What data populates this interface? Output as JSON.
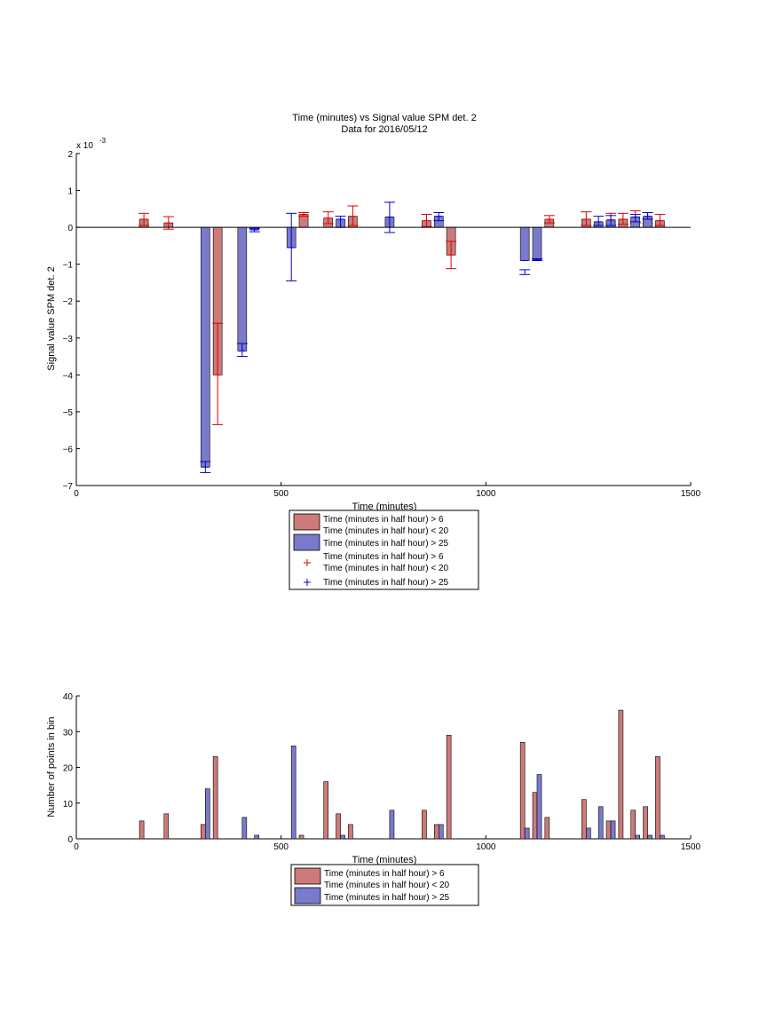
{
  "colors": {
    "bar_red_fill": "#cc7a7a",
    "bar_blue_fill": "#7a7acc",
    "err_red": "#dd0000",
    "err_blue": "#0000cc",
    "axis": "#000000"
  },
  "chart_data": [
    {
      "type": "bar",
      "title": "Time (minutes) vs Signal value SPM det. 2",
      "subtitle": "Data for 2016/05/12",
      "xlabel": "Time (minutes)",
      "ylabel": "Signal value SPM det. 2",
      "scale_label": "x 10",
      "scale_exponent": "-3",
      "xlim": [
        0,
        1500
      ],
      "ylim": [
        -7,
        2
      ],
      "xticks": [
        0,
        500,
        1000,
        1500
      ],
      "yticks": [
        2,
        1,
        0,
        -1,
        -2,
        -3,
        -4,
        -5,
        -6,
        -7
      ],
      "legend_position": "below",
      "legend": [
        {
          "kind": "bar",
          "color": "#cc7a7a",
          "line1": "Time (minutes in half hour) > 6",
          "line2": "Time (minutes in half hour) < 20"
        },
        {
          "kind": "bar",
          "color": "#7a7acc",
          "line1": "Time (minutes in half hour) > 25",
          "line2": ""
        },
        {
          "kind": "marker",
          "color": "#dd0000",
          "line1": "Time (minutes in half hour) > 6",
          "line2": "Time (minutes in half hour) < 20"
        },
        {
          "kind": "marker",
          "color": "#0000cc",
          "line1": "Time (minutes in half hour) > 25",
          "line2": ""
        }
      ],
      "series": [
        {
          "color": "red",
          "points": [
            {
              "x": 165,
              "y": 0.22,
              "lo": 0.05,
              "hi": 0.38
            },
            {
              "x": 225,
              "y": 0.12,
              "lo": -0.05,
              "hi": 0.29
            },
            {
              "x": 345,
              "y": -4.0,
              "lo": -5.35,
              "hi": -2.6
            },
            {
              "x": 555,
              "y": 0.35,
              "lo": 0.3,
              "hi": 0.4
            },
            {
              "x": 615,
              "y": 0.25,
              "lo": 0.1,
              "hi": 0.42
            },
            {
              "x": 675,
              "y": 0.3,
              "lo": 0.05,
              "hi": 0.58
            },
            {
              "x": 855,
              "y": 0.18,
              "lo": 0.02,
              "hi": 0.35
            },
            {
              "x": 915,
              "y": -0.75,
              "lo": -1.12,
              "hi": -0.38
            },
            {
              "x": 1155,
              "y": 0.22,
              "lo": 0.12,
              "hi": 0.32
            },
            {
              "x": 1245,
              "y": 0.22,
              "lo": 0.05,
              "hi": 0.42
            },
            {
              "x": 1305,
              "y": 0.2,
              "lo": 0.05,
              "hi": 0.38
            },
            {
              "x": 1335,
              "y": 0.22,
              "lo": 0.08,
              "hi": 0.38
            },
            {
              "x": 1365,
              "y": 0.28,
              "lo": 0.12,
              "hi": 0.45
            },
            {
              "x": 1395,
              "y": 0.25,
              "lo": 0.1,
              "hi": 0.4
            },
            {
              "x": 1425,
              "y": 0.18,
              "lo": 0.05,
              "hi": 0.35
            }
          ]
        },
        {
          "color": "blue",
          "points": [
            {
              "x": 315,
              "y": -6.5,
              "lo": -6.65,
              "hi": -6.35
            },
            {
              "x": 405,
              "y": -3.35,
              "lo": -3.5,
              "hi": -3.15
            },
            {
              "x": 435,
              "y": -0.07,
              "lo": -0.12,
              "hi": -0.03
            },
            {
              "x": 525,
              "y": -0.55,
              "lo": -1.45,
              "hi": 0.38
            },
            {
              "x": 645,
              "y": 0.22,
              "lo": 0.0,
              "hi": 0.3
            },
            {
              "x": 765,
              "y": 0.28,
              "lo": -0.14,
              "hi": 0.68
            },
            {
              "x": 885,
              "y": 0.3,
              "lo": 0.18,
              "hi": 0.4
            },
            {
              "x": 1095,
              "y": -0.9,
              "lo": -1.28,
              "hi": -1.15
            },
            {
              "x": 1125,
              "y": -0.88,
              "lo": -0.9,
              "hi": -0.85
            },
            {
              "x": 1275,
              "y": 0.15,
              "lo": 0.05,
              "hi": 0.3
            },
            {
              "x": 1305,
              "y": 0.2,
              "lo": 0.05,
              "hi": 0.32
            },
            {
              "x": 1365,
              "y": 0.28,
              "lo": 0.15,
              "hi": 0.35
            },
            {
              "x": 1395,
              "y": 0.3,
              "lo": 0.22,
              "hi": 0.4
            }
          ]
        }
      ]
    },
    {
      "type": "bar",
      "title": "",
      "xlabel": "Time (minutes)",
      "ylabel": "Number of points in bin",
      "xlim": [
        0,
        1500
      ],
      "ylim": [
        0,
        40
      ],
      "xticks": [
        0,
        500,
        1000,
        1500
      ],
      "yticks": [
        40,
        30,
        20,
        10,
        0
      ],
      "legend_position": "below",
      "legend": [
        {
          "kind": "bar",
          "color": "#cc7a7a",
          "line1": "Time (minutes in half hour) > 6",
          "line2": "Time (minutes in half hour) < 20"
        },
        {
          "kind": "bar",
          "color": "#7a7acc",
          "line1": "Time (minutes in half hour) > 25",
          "line2": ""
        }
      ],
      "series": [
        {
          "color": "red",
          "x": [
            165,
            225,
            315,
            345,
            555,
            615,
            645,
            675,
            855,
            885,
            915,
            1095,
            1125,
            1155,
            1245,
            1305,
            1335,
            1365,
            1395,
            1425
          ],
          "values": [
            5,
            7,
            4,
            23,
            1,
            16,
            7,
            4,
            8,
            4,
            29,
            27,
            13,
            6,
            11,
            5,
            36,
            8,
            9,
            23
          ]
        },
        {
          "color": "blue",
          "x": [
            315,
            405,
            435,
            525,
            645,
            765,
            885,
            1095,
            1125,
            1245,
            1275,
            1305,
            1365,
            1395,
            1425
          ],
          "values": [
            14,
            6,
            1,
            26,
            1,
            8,
            4,
            3,
            18,
            3,
            9,
            5,
            1,
            1,
            1
          ]
        }
      ]
    }
  ]
}
